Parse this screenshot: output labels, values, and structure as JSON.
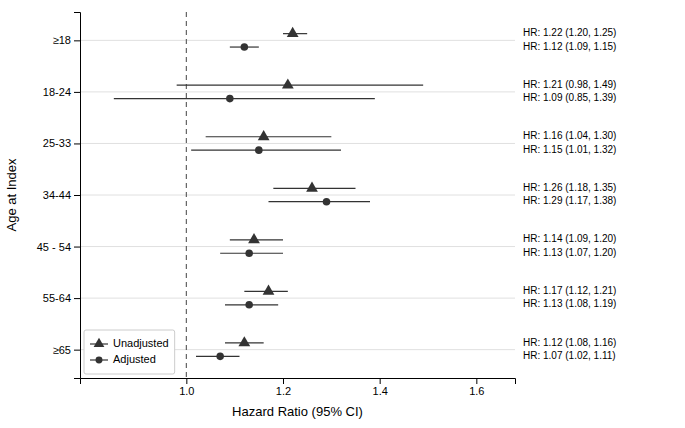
{
  "chart_data": {
    "type": "forest",
    "xlabel": "Hazard Ratio (95% CI)",
    "ylabel": "Age at Index",
    "categories": [
      "≥18",
      "18-24",
      "25-33",
      "34-44",
      "45 - 54",
      "55-64",
      "≥65"
    ],
    "series": [
      {
        "name": "Unadjusted",
        "color": "#333333",
        "marker": "triangle",
        "values": [
          1.22,
          1.21,
          1.16,
          1.26,
          1.14,
          1.17,
          1.12
        ],
        "ci_lo": [
          1.2,
          0.98,
          1.04,
          1.18,
          1.09,
          1.12,
          1.08
        ],
        "ci_hi": [
          1.25,
          1.49,
          1.3,
          1.35,
          1.2,
          1.21,
          1.16
        ],
        "value_labels": [
          "HR: 1.22 (1.20, 1.25)",
          "HR: 1.21 (0.98, 1.49)",
          "HR: 1.16 (1.04, 1.30)",
          "HR: 1.26 (1.18, 1.35)",
          "HR: 1.14 (1.09, 1.20)",
          "HR: 1.17 (1.12, 1.21)",
          "HR: 1.12 (1.08, 1.16)"
        ]
      },
      {
        "name": "Adjusted",
        "color": "#333333",
        "marker": "circle",
        "values": [
          1.12,
          1.09,
          1.15,
          1.29,
          1.13,
          1.13,
          1.07
        ],
        "ci_lo": [
          1.09,
          0.85,
          1.01,
          1.17,
          1.07,
          1.08,
          1.02
        ],
        "ci_hi": [
          1.15,
          1.39,
          1.32,
          1.38,
          1.2,
          1.19,
          1.11
        ],
        "value_labels": [
          "HR: 1.12 (1.09, 1.15)",
          "HR: 1.09 (0.85, 1.39)",
          "HR: 1.15 (1.01, 1.32)",
          "HR: 1.29 (1.17, 1.38)",
          "HR: 1.13 (1.07, 1.20)",
          "HR: 1.13 (1.08, 1.19)",
          "HR: 1.07 (1.02, 1.11)"
        ]
      }
    ],
    "reference_line": 1.0,
    "xlim": [
      0.78,
      1.68
    ],
    "xticks": [
      {
        "value": 1.0,
        "label": "1.0"
      },
      {
        "value": 1.2,
        "label": "1.2"
      },
      {
        "value": 1.4,
        "label": "1.4"
      },
      {
        "value": 1.6,
        "label": "1.6"
      }
    ],
    "grid": true,
    "legend": "lower left",
    "data_labels": true
  }
}
